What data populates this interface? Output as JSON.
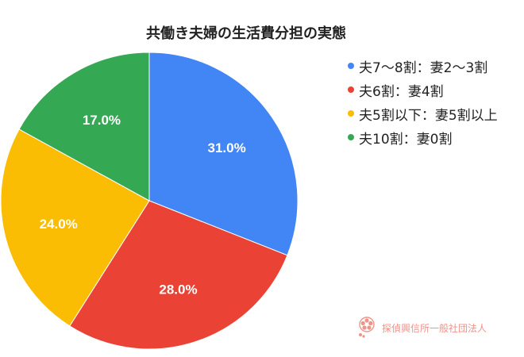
{
  "chart_data": {
    "type": "pie",
    "title": "共働き夫婦の生活費分担の実態",
    "slices": [
      {
        "label": "夫7〜8割：妻2〜3割",
        "value": 31.0,
        "display": "31.0%",
        "color": "#4285f4"
      },
      {
        "label": "夫6割：妻4割",
        "value": 28.0,
        "display": "28.0%",
        "color": "#ea4335"
      },
      {
        "label": "夫5割以下：妻5割以上",
        "value": 24.0,
        "display": "24.0%",
        "color": "#fbbc04"
      },
      {
        "label": "夫10割：妻0割",
        "value": 17.0,
        "display": "17.0%",
        "color": "#34a853"
      }
    ],
    "legend_position": "right",
    "start_angle": "12 o'clock",
    "direction": "clockwise"
  },
  "watermark": {
    "text": "探偵興信所一般社団法人",
    "icon": "cherry-blossom-logo",
    "color": "#f0938a"
  }
}
